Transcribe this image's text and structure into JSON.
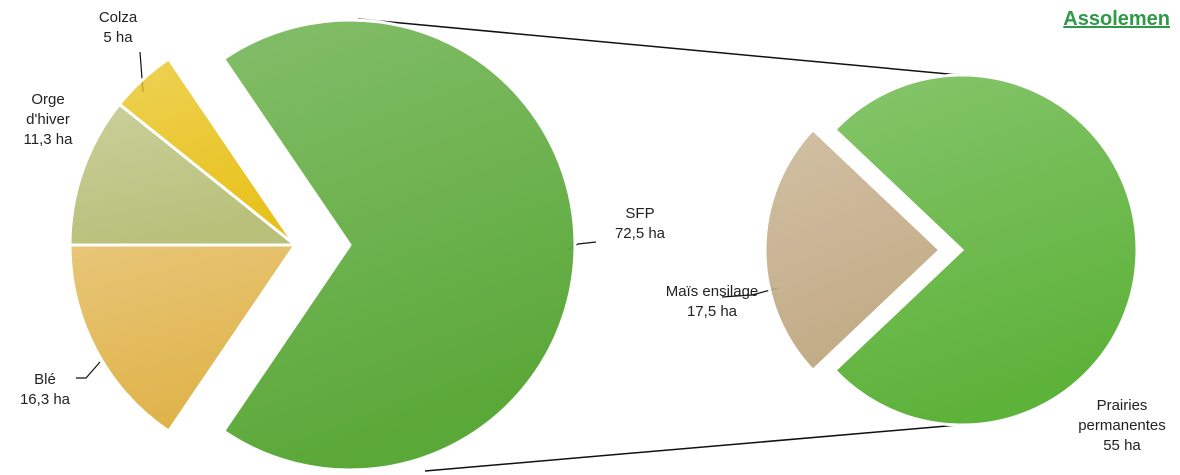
{
  "chart_data": [
    {
      "type": "pie",
      "title": "Assolemen",
      "categories": [
        "Colza",
        "Orge d'hiver",
        "Blé",
        "SFP"
      ],
      "values": [
        5,
        11.3,
        16.3,
        72.5
      ],
      "value_labels": [
        "5 ha",
        "11,3 ha",
        "16,3 ha",
        "72,5 ha"
      ],
      "colors": [
        "#e8c21c",
        "#b9c07a",
        "#e0b34a",
        "#5aa838"
      ]
    },
    {
      "type": "pie",
      "categories": [
        "Maïs ensilage",
        "Prairies permanentes"
      ],
      "values": [
        17.5,
        55
      ],
      "value_labels": [
        "17,5 ha",
        "55 ha"
      ],
      "colors": [
        "#c2ab86",
        "#5db23a"
      ]
    }
  ]
}
